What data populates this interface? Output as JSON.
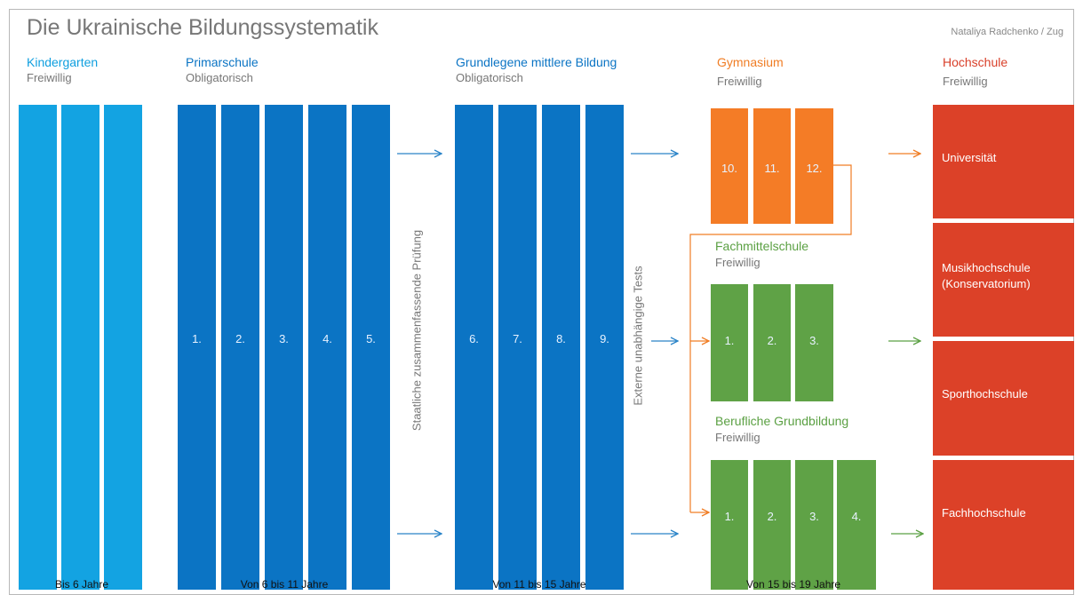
{
  "title": "Die Ukrainische Bildungssystematik",
  "author": "Nataliya Radchenko / Zug",
  "stages": {
    "kindergarten": {
      "name": "Kindergarten",
      "sub": "Freiwillig"
    },
    "primarschule": {
      "name": "Primarschule",
      "sub": "Obligatorisch",
      "grades": [
        "1.",
        "2.",
        "3.",
        "4.",
        "5."
      ]
    },
    "grundlegende": {
      "name": "Grundlegene mittlere Bildung",
      "sub": "Obligatorisch",
      "grades": [
        "6.",
        "7.",
        "8.",
        "9."
      ]
    },
    "gymnasium": {
      "name": "Gymnasium",
      "sub": "Freiwillig",
      "grades": [
        "10.",
        "11.",
        "12."
      ]
    },
    "fachmittelschule": {
      "name": "Fachmittelschule",
      "sub": "Freiwillig",
      "grades": [
        "1.",
        "2.",
        "3."
      ]
    },
    "berufliche": {
      "name": "Berufliche Grundbildung",
      "sub": "Freiwillig",
      "grades": [
        "1.",
        "2.",
        "3.",
        "4."
      ]
    },
    "hochschule": {
      "name": "Hochschule",
      "sub": "Freiwillig",
      "institutions": [
        "Universität",
        "Musikhochschule (Konservatorium)",
        "Sporthochschule",
        "Fachhochschule"
      ]
    }
  },
  "exams": {
    "staatliche": "Staatliche zusammenfassende Prüfung",
    "externe": "Externe unabhängige Tests"
  },
  "ages": [
    "Bis 6 Jahre",
    "Von 6 bis 11 Jahre",
    "Von 11 bis 15 Jahre",
    "Von 15 bis 19 Jahre"
  ],
  "colors": {
    "kindergarten": "#13a3e2",
    "school": "#0b74c4",
    "gymnasium": "#f47c26",
    "vocational": "#5fa246",
    "hochschule": "#dc4128"
  }
}
